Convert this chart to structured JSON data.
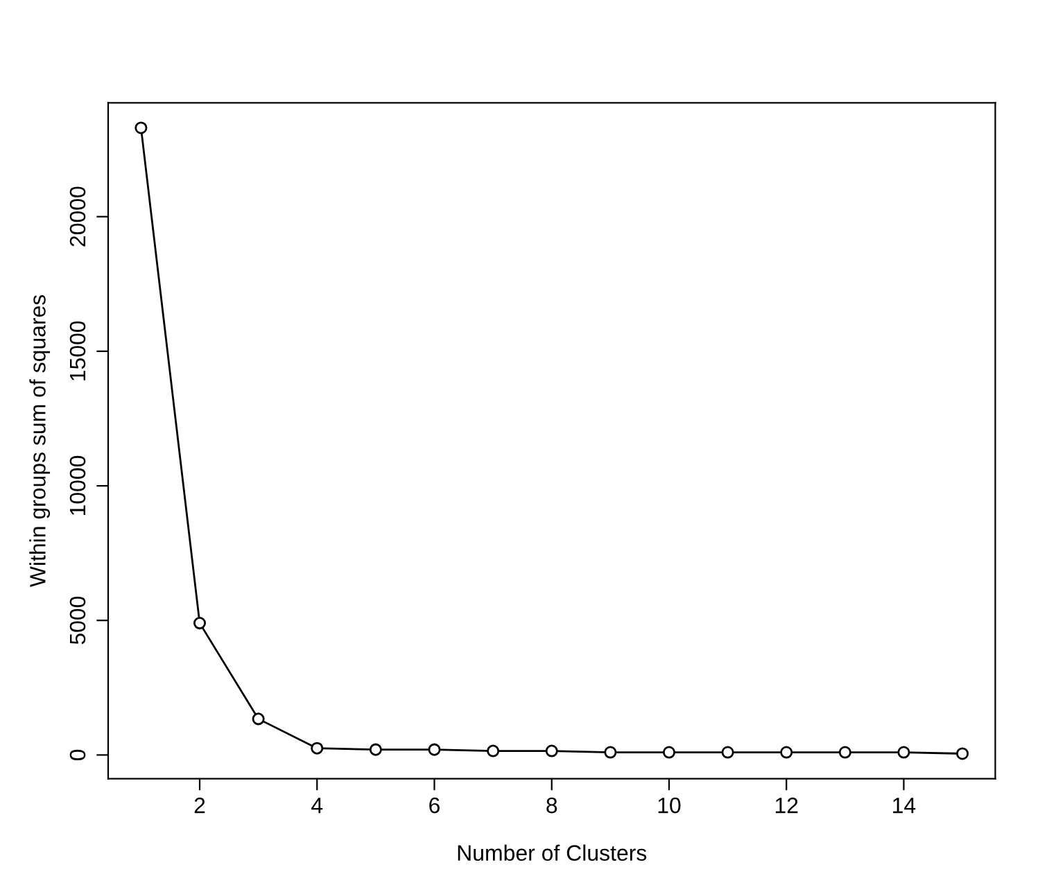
{
  "chart_data": {
    "type": "line",
    "xlabel": "Number of Clusters",
    "ylabel": "Within groups sum of squares",
    "x": [
      1,
      2,
      3,
      4,
      5,
      6,
      7,
      8,
      9,
      10,
      11,
      12,
      13,
      14,
      15
    ],
    "series": [
      {
        "color": "#000000",
        "values": [
          23300,
          4900,
          1340,
          250,
          200,
          200,
          150,
          150,
          100,
          100,
          100,
          100,
          100,
          100,
          50
        ]
      }
    ],
    "xlim": [
      0.44,
      15.56
    ],
    "xticks": [
      2,
      4,
      6,
      8,
      10,
      12,
      14
    ],
    "ylim": [
      -880,
      24230
    ],
    "yticks": [
      0,
      5000,
      10000,
      15000,
      20000
    ],
    "marker": "circle",
    "line_style": "solid",
    "grid": false,
    "legend": false
  }
}
